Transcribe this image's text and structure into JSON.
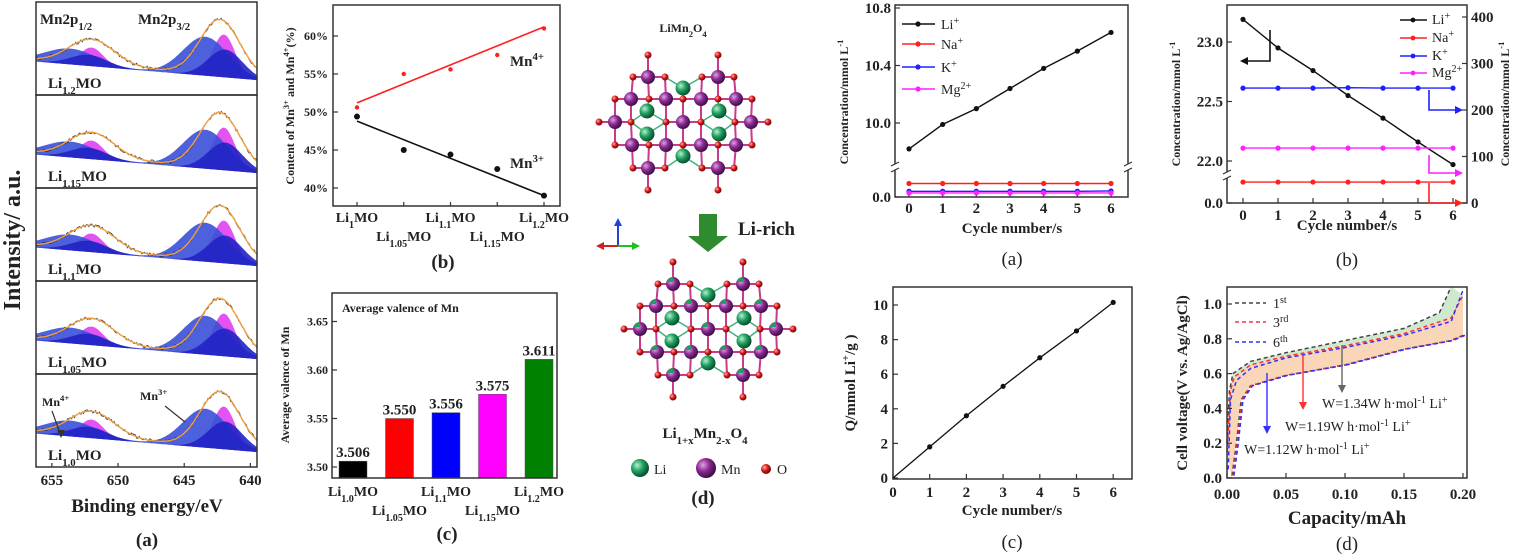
{
  "chart_data": [
    {
      "id": "xps",
      "type": "line",
      "panel_label": "(a)",
      "ylabel": "Intensity/ a.u.",
      "xlabel": "Binding energy/eV",
      "xlim": [
        656.2,
        639.5
      ],
      "xtick_values": [
        655,
        650,
        645,
        640
      ],
      "xtick_labels": [
        "655",
        "650",
        "645",
        "640"
      ],
      "peak_titles": [
        [
          [
            "Mn2p",
            ""
          ],
          [
            "1/2",
            "sub"
          ]
        ],
        [
          [
            "Mn2p",
            ""
          ],
          [
            "3/2",
            "sub"
          ]
        ]
      ],
      "component_labels": [
        [
          [
            "Mn",
            ""
          ],
          [
            "4+",
            "sup"
          ]
        ],
        [
          [
            "Mn",
            ""
          ],
          [
            "3+",
            "sup"
          ]
        ]
      ],
      "samples": [
        [
          [
            "Li",
            ""
          ],
          [
            "1.2",
            "sub"
          ],
          [
            "MO",
            ""
          ]
        ],
        [
          [
            "Li",
            ""
          ],
          [
            "1.15",
            "sub"
          ],
          [
            "MO",
            ""
          ]
        ],
        [
          [
            "Li",
            ""
          ],
          [
            "1.1",
            "sub"
          ],
          [
            "MO",
            ""
          ]
        ],
        [
          [
            "Li",
            ""
          ],
          [
            "1.05",
            "sub"
          ],
          [
            "MO",
            ""
          ]
        ],
        [
          [
            "Li",
            ""
          ],
          [
            "1.0",
            "sub"
          ],
          [
            "MO",
            ""
          ]
        ]
      ],
      "peak_positions_eV": {
        "Mn2p1/2": 652.0,
        "Mn2p3/2": 642.3
      },
      "colors": {
        "mn4": "#e040f0",
        "mn3": "#3a50d8",
        "mn3_dark": "#2222c4",
        "fit": "#f0a040",
        "data": "#333333"
      }
    },
    {
      "id": "mn_content",
      "type": "scatter",
      "panel_label": "(b)",
      "ylabel": [
        [
          "Content of Mn",
          ""
        ],
        [
          "3+",
          "sup"
        ],
        [
          " and Mn",
          ""
        ],
        [
          "4+",
          "sup"
        ],
        [
          "(%)",
          ""
        ]
      ],
      "categories": [
        [
          [
            "Li",
            ""
          ],
          [
            "1",
            "sub"
          ],
          [
            "MO",
            ""
          ]
        ],
        [
          [
            "Li",
            ""
          ],
          [
            "1.05",
            "sub"
          ],
          [
            "MO",
            ""
          ]
        ],
        [
          [
            "Li",
            ""
          ],
          [
            "1.1",
            "sub"
          ],
          [
            "MO",
            ""
          ]
        ],
        [
          [
            "Li",
            ""
          ],
          [
            "1.15",
            "sub"
          ],
          [
            "MO",
            ""
          ]
        ],
        [
          [
            "Li",
            ""
          ],
          [
            "1.2",
            "sub"
          ],
          [
            "MO",
            ""
          ]
        ]
      ],
      "ylim": [
        37.6,
        64.1
      ],
      "ytick_values": [
        40,
        45,
        50,
        55,
        60
      ],
      "ytick_labels": [
        "40%",
        "45%",
        "50%",
        "55%",
        "60%"
      ],
      "series": [
        {
          "name": [
            [
              "Mn",
              ""
            ],
            [
              "4+",
              "sup"
            ]
          ],
          "color": "#ff2020",
          "values": [
            50.6,
            55.0,
            55.6,
            57.5,
            61.0
          ],
          "fit": [
            51.2,
            61.2
          ]
        },
        {
          "name": [
            [
              "Mn",
              ""
            ],
            [
              "3+",
              "sup"
            ]
          ],
          "color": "#111111",
          "values": [
            49.4,
            45.0,
            44.4,
            42.5,
            39.0
          ],
          "fit": [
            48.8,
            39.0
          ]
        }
      ]
    },
    {
      "id": "avg_valence",
      "type": "bar",
      "panel_label": "(c)",
      "title": "Average valence of Mn",
      "ylabel": "Average valence of Mn",
      "categories": [
        [
          [
            "Li",
            ""
          ],
          [
            "1.0",
            "sub"
          ],
          [
            "MO",
            ""
          ]
        ],
        [
          [
            "Li",
            ""
          ],
          [
            "1.05",
            "sub"
          ],
          [
            "MO",
            ""
          ]
        ],
        [
          [
            "Li",
            ""
          ],
          [
            "1.1",
            "sub"
          ],
          [
            "MO",
            ""
          ]
        ],
        [
          [
            "Li",
            ""
          ],
          [
            "1.15",
            "sub"
          ],
          [
            "MO",
            ""
          ]
        ],
        [
          [
            "Li",
            ""
          ],
          [
            "1.2",
            "sub"
          ],
          [
            "MO",
            ""
          ]
        ]
      ],
      "values": [
        3.506,
        3.55,
        3.556,
        3.575,
        3.611
      ],
      "value_labels": [
        "3.506",
        "3.550",
        "3.556",
        "3.575",
        "3.611"
      ],
      "colors": [
        "#000000",
        "#ff0000",
        "#0000ff",
        "#ff00ff",
        "#008000"
      ],
      "ylim": [
        3.489,
        3.68
      ],
      "ytick_values": [
        3.5,
        3.55,
        3.6,
        3.65
      ],
      "ytick_labels": [
        "3.50",
        "3.55",
        "3.60",
        "3.65"
      ]
    },
    {
      "id": "ion_concentration_a",
      "type": "line",
      "panel_label": "(a)",
      "xlabel": "Cycle number/s",
      "ylabel": [
        [
          "Concentration/mmol L",
          ""
        ],
        [
          "-1",
          "sup"
        ]
      ],
      "x": [
        0,
        1,
        2,
        3,
        4,
        5,
        6
      ],
      "xtick_labels": [
        "0",
        "1",
        "2",
        "3",
        "4",
        "5",
        "6"
      ],
      "ylim_upper": [
        9.6,
        10.8
      ],
      "ylim_lower": [
        0,
        0.8
      ],
      "ytick_values": [
        0,
        10.0,
        10.4,
        10.8
      ],
      "ytick_labels": [
        "0.0",
        "10.0",
        "10.4",
        "10.8"
      ],
      "axis_break": true,
      "series": [
        {
          "name": [
            [
              "Li",
              ""
            ],
            [
              "+",
              "sup"
            ]
          ],
          "color": "#111111",
          "values": [
            9.82,
            9.99,
            10.1,
            10.24,
            10.38,
            10.5,
            10.63
          ]
        },
        {
          "name": [
            [
              "Na",
              ""
            ],
            [
              "+",
              "sup"
            ]
          ],
          "color": "#ff2020",
          "values": [
            0.4,
            0.4,
            0.4,
            0.4,
            0.4,
            0.4,
            0.4
          ]
        },
        {
          "name": [
            [
              "K",
              ""
            ],
            [
              "+",
              "sup"
            ]
          ],
          "color": "#2020ff",
          "values": [
            0.17,
            0.17,
            0.17,
            0.17,
            0.17,
            0.17,
            0.18
          ]
        },
        {
          "name": [
            [
              "Mg",
              ""
            ],
            [
              "2+",
              "sup"
            ]
          ],
          "color": "#ff20ff",
          "values": [
            0.12,
            0.12,
            0.12,
            0.12,
            0.12,
            0.12,
            0.12
          ]
        }
      ]
    },
    {
      "id": "ion_concentration_b",
      "type": "line",
      "panel_label": "(b)",
      "xlabel": "Cycle number/s",
      "ylabel_left": [
        [
          "Concentration/mmol L",
          ""
        ],
        [
          "-1",
          "sup"
        ]
      ],
      "ylabel_right": [
        [
          "Concentration/mmol L",
          ""
        ],
        [
          "-1",
          "sup"
        ]
      ],
      "x": [
        0,
        1,
        2,
        3,
        4,
        5,
        6
      ],
      "xtick_labels": [
        "0",
        "1",
        "2",
        "3",
        "4",
        "5",
        "6"
      ],
      "left_ytick_values": [
        0,
        22.0,
        22.5,
        23.0
      ],
      "left_ytick_labels": [
        "0.0",
        "22.0",
        "22.5",
        "23.0"
      ],
      "right_ytick_values": [
        0,
        100,
        200,
        300,
        400
      ],
      "right_ytick_labels": [
        "0",
        "100",
        "200",
        "300",
        "400"
      ],
      "axis_break": true,
      "series": [
        {
          "name": [
            [
              "Li",
              ""
            ],
            [
              "+",
              "sup"
            ]
          ],
          "color": "#111111",
          "axis": "left",
          "values": [
            23.19,
            22.95,
            22.76,
            22.55,
            22.36,
            22.16,
            21.97
          ]
        },
        {
          "name": [
            [
              "Na",
              ""
            ],
            [
              "+",
              "sup"
            ]
          ],
          "color": "#ff2020",
          "axis": "right",
          "values": [
            45,
            45,
            45,
            45,
            45,
            45,
            45
          ]
        },
        {
          "name": [
            [
              "K",
              ""
            ],
            [
              "+",
              "sup"
            ]
          ],
          "color": "#2020ff",
          "axis": "right",
          "values": [
            247,
            247,
            247,
            248,
            247,
            247,
            247
          ]
        },
        {
          "name": [
            [
              "Mg",
              ""
            ],
            [
              "2+",
              "sup"
            ]
          ],
          "color": "#ff20ff",
          "axis": "right",
          "values": [
            118,
            118,
            118,
            118,
            118,
            118,
            118
          ]
        }
      ]
    },
    {
      "id": "li_uptake",
      "type": "line",
      "panel_label": "(c)",
      "xlabel": "Cycle number/s",
      "ylabel": [
        [
          "Q/mmol Li",
          ""
        ],
        [
          "+",
          "sup"
        ],
        [
          "/g )",
          ""
        ]
      ],
      "x": [
        0,
        1,
        2,
        3,
        4,
        5,
        6
      ],
      "xtick_labels": [
        "0",
        "1",
        "2",
        "3",
        "4",
        "5",
        "6"
      ],
      "values": [
        0,
        1.8,
        3.6,
        5.3,
        6.95,
        8.5,
        10.15
      ],
      "ylim": [
        0,
        11
      ],
      "ytick_values": [
        0,
        2,
        4,
        6,
        8,
        10
      ],
      "ytick_labels": [
        "0",
        "2",
        "4",
        "6",
        "8",
        "10"
      ]
    },
    {
      "id": "cell_voltage",
      "type": "line",
      "panel_label": "(d)",
      "xlabel": "Capacity/mAh",
      "ylabel": "Cell voltage(V vs. Ag/AgCl)",
      "xlim": [
        0,
        0.203
      ],
      "ylim": [
        0,
        1.1
      ],
      "xtick_values": [
        0,
        0.05,
        0.1,
        0.15,
        0.2
      ],
      "xtick_labels": [
        "0.00",
        "0.05",
        "0.10",
        "0.15",
        "0.20"
      ],
      "ytick_values": [
        0,
        0.2,
        0.4,
        0.6,
        0.8,
        1.0
      ],
      "ytick_labels": [
        "0.0",
        "0.2",
        "0.4",
        "0.6",
        "0.8",
        "1.0"
      ],
      "series": [
        {
          "name": [
            [
              "1",
              ""
            ],
            [
              "st",
              "sup"
            ]
          ],
          "color": "#444444",
          "charge": [
            [
              0,
              0.2
            ],
            [
              0.002,
              0.5
            ],
            [
              0.005,
              0.6
            ],
            [
              0.02,
              0.67
            ],
            [
              0.05,
              0.72
            ],
            [
              0.1,
              0.79
            ],
            [
              0.15,
              0.86
            ],
            [
              0.18,
              0.95
            ],
            [
              0.19,
              1.1
            ]
          ]
        },
        {
          "name": [
            [
              "3",
              ""
            ],
            [
              "rd",
              "sup"
            ]
          ],
          "color": "#ff3030",
          "charge": [
            [
              0,
              0.15
            ],
            [
              0.003,
              0.5
            ],
            [
              0.006,
              0.58
            ],
            [
              0.02,
              0.65
            ],
            [
              0.05,
              0.7
            ],
            [
              0.1,
              0.76
            ],
            [
              0.15,
              0.83
            ],
            [
              0.19,
              0.92
            ],
            [
              0.2,
              1.05
            ]
          ]
        },
        {
          "name": [
            [
              "6",
              ""
            ],
            [
              "th",
              "sup"
            ]
          ],
          "color": "#3030ff",
          "charge": [
            [
              0.001,
              0.05
            ],
            [
              0.003,
              0.45
            ],
            [
              0.008,
              0.56
            ],
            [
              0.02,
              0.63
            ],
            [
              0.05,
              0.69
            ],
            [
              0.1,
              0.75
            ],
            [
              0.15,
              0.82
            ],
            [
              0.19,
              0.9
            ],
            [
              0.2,
              1.08
            ]
          ]
        }
      ],
      "discharge": [
        [
          0.2,
          0.82
        ],
        [
          0.19,
          0.79
        ],
        [
          0.15,
          0.74
        ],
        [
          0.1,
          0.65
        ],
        [
          0.05,
          0.59
        ],
        [
          0.02,
          0.53
        ],
        [
          0.012,
          0.45
        ],
        [
          0.008,
          0.2
        ],
        [
          0.004,
          0
        ]
      ],
      "annotations": [
        {
          "text": [
            [
              "W=1.34W h·mol",
              ""
            ],
            [
              "-1",
              "sup"
            ],
            [
              " Li",
              ""
            ],
            [
              "+",
              "sup"
            ]
          ],
          "color": "#444444"
        },
        {
          "text": [
            [
              "W=1.19W h·mol",
              ""
            ],
            [
              "-1",
              "sup"
            ],
            [
              " Li",
              ""
            ],
            [
              "+",
              "sup"
            ]
          ],
          "color": "#ff3030"
        },
        {
          "text": [
            [
              "W=1.12W h·mol",
              ""
            ],
            [
              "-1",
              "sup"
            ],
            [
              " Li",
              ""
            ],
            [
              "+",
              "sup"
            ]
          ],
          "color": "#3030ff"
        }
      ],
      "fill_colors": {
        "between_1st_3rd": "#cfe9cf",
        "between_charge_discharge": "#f9d6b8"
      }
    }
  ],
  "structure": {
    "top_formula": [
      [
        "LiMn",
        ""
      ],
      [
        "2",
        "sub"
      ],
      [
        "O",
        ""
      ],
      [
        "4",
        "sub"
      ]
    ],
    "bottom_formula": [
      [
        "Li",
        ""
      ],
      [
        "1+x",
        "sub"
      ],
      [
        "Mn",
        ""
      ],
      [
        "2-x",
        "sub"
      ],
      [
        "O",
        ""
      ],
      [
        "4",
        "sub"
      ]
    ],
    "arrow_label": "Li-rich",
    "legend": [
      "Li",
      "Mn",
      "O"
    ],
    "panel_label": "(d)",
    "colors": {
      "Li": "#20a060",
      "Mn": "#8a2a90",
      "O": "#dd1a1a",
      "arrow": "#2e8b2e"
    }
  }
}
